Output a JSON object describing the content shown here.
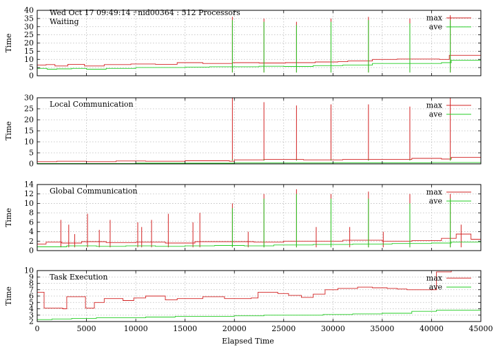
{
  "chart_data": {
    "type": "line",
    "title": "Wed Oct 17 09:49:14 : nid00364 : 512 Processors",
    "xlabel": "Elapsed Time",
    "xlim": [
      0,
      45000
    ],
    "xticks": [
      0,
      5000,
      10000,
      15000,
      20000,
      25000,
      30000,
      35000,
      40000,
      45000
    ],
    "colors": {
      "max": "#d22020",
      "ave": "#22cc22"
    },
    "legend_position": "top-right",
    "grid": true,
    "panels": [
      {
        "name": "Waiting",
        "ylabel": "Time",
        "ylim": [
          0,
          40
        ],
        "yticks": [
          0,
          5,
          10,
          15,
          20,
          25,
          30,
          35,
          40
        ],
        "series": [
          {
            "name": "max",
            "steps": [
              [
                0,
                6.5
              ],
              [
                900,
                6.8
              ],
              [
                1800,
                6
              ],
              [
                3100,
                7
              ],
              [
                4800,
                6
              ],
              [
                6800,
                6.8
              ],
              [
                9500,
                7.2
              ],
              [
                12000,
                7
              ],
              [
                14200,
                8
              ],
              [
                16800,
                7.5
              ],
              [
                19800,
                8
              ],
              [
                22500,
                7.8
              ],
              [
                25200,
                8
              ],
              [
                28200,
                8.4
              ],
              [
                30500,
                8.6
              ],
              [
                31500,
                9
              ],
              [
                34000,
                10
              ],
              [
                36500,
                10.2
              ],
              [
                40800,
                10
              ],
              [
                41800,
                12.5
              ],
              [
                45000,
                12.5
              ]
            ],
            "spikes": [
              [
                19800,
                36
              ],
              [
                23000,
                35
              ],
              [
                26300,
                33
              ],
              [
                29800,
                35
              ],
              [
                33600,
                36
              ],
              [
                37800,
                35
              ],
              [
                41900,
                37
              ]
            ]
          },
          {
            "name": "ave",
            "steps": [
              [
                0,
                4.5
              ],
              [
                1000,
                4
              ],
              [
                2000,
                4.2
              ],
              [
                3500,
                4.5
              ],
              [
                5000,
                4
              ],
              [
                7000,
                4.5
              ],
              [
                10000,
                5
              ],
              [
                12500,
                5
              ],
              [
                15000,
                5.3
              ],
              [
                17500,
                5.5
              ],
              [
                20000,
                5.5
              ],
              [
                22500,
                5.8
              ],
              [
                25000,
                5.7
              ],
              [
                28000,
                6.2
              ],
              [
                31000,
                6.5
              ],
              [
                34000,
                7.5
              ],
              [
                37000,
                7.5
              ],
              [
                41000,
                8
              ],
              [
                42000,
                9.5
              ],
              [
                45000,
                9.5
              ]
            ],
            "spikes": [
              [
                19800,
                34
              ],
              [
                23000,
                33
              ],
              [
                26300,
                31
              ],
              [
                29800,
                33
              ],
              [
                33600,
                34
              ],
              [
                37800,
                32
              ],
              [
                41900,
                34
              ]
            ]
          }
        ]
      },
      {
        "name": "Local Communication",
        "ylabel": "Time",
        "ylim": [
          0,
          30
        ],
        "yticks": [
          0,
          5,
          10,
          15,
          20,
          25,
          30
        ],
        "series": [
          {
            "name": "max",
            "steps": [
              [
                0,
                1
              ],
              [
                2000,
                1.2
              ],
              [
                5000,
                1
              ],
              [
                8000,
                1.3
              ],
              [
                11000,
                1.2
              ],
              [
                15000,
                1.4
              ],
              [
                19500,
                1.2
              ],
              [
                20000,
                1.8
              ],
              [
                23000,
                2
              ],
              [
                27000,
                1.8
              ],
              [
                31000,
                2
              ],
              [
                35000,
                2
              ],
              [
                38000,
                2.5
              ],
              [
                41000,
                2.2
              ],
              [
                42000,
                3
              ],
              [
                45000,
                3
              ]
            ],
            "spikes": [
              [
                19800,
                30
              ],
              [
                23000,
                28
              ],
              [
                26300,
                26.5
              ],
              [
                29800,
                27
              ],
              [
                33600,
                27
              ],
              [
                37800,
                26
              ],
              [
                41900,
                30
              ]
            ]
          },
          {
            "name": "ave",
            "steps": [
              [
                0,
                0.2
              ],
              [
                10000,
                0.3
              ],
              [
                20000,
                0.4
              ],
              [
                30000,
                0.5
              ],
              [
                40000,
                0.6
              ],
              [
                45000,
                0.6
              ]
            ],
            "spikes": [
              [
                19800,
                2
              ],
              [
                23000,
                2
              ],
              [
                26300,
                2
              ],
              [
                29800,
                2
              ],
              [
                33600,
                2
              ],
              [
                37800,
                2
              ],
              [
                41900,
                3
              ]
            ]
          }
        ]
      },
      {
        "name": "Global Communication",
        "ylabel": "Time",
        "ylim": [
          0,
          14
        ],
        "yticks": [
          0,
          2,
          4,
          6,
          8,
          10,
          12,
          14
        ],
        "series": [
          {
            "name": "max",
            "steps": [
              [
                0,
                1.4
              ],
              [
                900,
                1.8
              ],
              [
                2500,
                1.6
              ],
              [
                4500,
                1.9
              ],
              [
                7000,
                1.7
              ],
              [
                10000,
                1.8
              ],
              [
                13000,
                1.6
              ],
              [
                16000,
                1.9
              ],
              [
                19000,
                1.9
              ],
              [
                22000,
                1.8
              ],
              [
                25000,
                2
              ],
              [
                29000,
                2
              ],
              [
                31000,
                2.2
              ],
              [
                35000,
                2
              ],
              [
                38000,
                2.1
              ],
              [
                41000,
                2.6
              ],
              [
                42500,
                3.5
              ],
              [
                44000,
                2.4
              ],
              [
                45000,
                2.4
              ]
            ],
            "spikes": [
              [
                2400,
                6.5
              ],
              [
                3200,
                5.5
              ],
              [
                3800,
                3.5
              ],
              [
                5100,
                7.8
              ],
              [
                6300,
                4.4
              ],
              [
                7400,
                6.5
              ],
              [
                10200,
                6
              ],
              [
                10600,
                5
              ],
              [
                11600,
                6.5
              ],
              [
                13300,
                7.8
              ],
              [
                15800,
                6
              ],
              [
                16500,
                8
              ],
              [
                19800,
                10
              ],
              [
                21400,
                4
              ],
              [
                23000,
                12
              ],
              [
                26300,
                13
              ],
              [
                28300,
                5
              ],
              [
                29800,
                12
              ],
              [
                31700,
                5
              ],
              [
                33600,
                12.5
              ],
              [
                35100,
                4
              ],
              [
                37800,
                12
              ],
              [
                41900,
                12
              ],
              [
                43000,
                5.5
              ]
            ]
          },
          {
            "name": "ave",
            "steps": [
              [
                0,
                0.8
              ],
              [
                3000,
                1
              ],
              [
                6000,
                0.9
              ],
              [
                9000,
                1
              ],
              [
                12000,
                0.9
              ],
              [
                15000,
                1
              ],
              [
                18000,
                1.1
              ],
              [
                21000,
                1
              ],
              [
                24000,
                1.2
              ],
              [
                28000,
                1.3
              ],
              [
                32000,
                1.4
              ],
              [
                36000,
                1.5
              ],
              [
                40000,
                1.6
              ],
              [
                42000,
                1.8
              ],
              [
                45000,
                1.8
              ]
            ],
            "spikes": [
              [
                19800,
                9
              ],
              [
                23000,
                11
              ],
              [
                26300,
                12
              ],
              [
                29800,
                11
              ],
              [
                33600,
                11
              ],
              [
                37800,
                10
              ],
              [
                41900,
                11
              ]
            ]
          }
        ]
      },
      {
        "name": "Task Execution",
        "ylabel": "Time",
        "ylim": [
          2,
          10
        ],
        "yticks": [
          2,
          3,
          4,
          5,
          6,
          7,
          8,
          9,
          10
        ],
        "series": [
          {
            "name": "max",
            "steps": [
              [
                0,
                6.6
              ],
              [
                700,
                4.1
              ],
              [
                2600,
                4
              ],
              [
                3000,
                5.9
              ],
              [
                4900,
                4.1
              ],
              [
                5800,
                5
              ],
              [
                6800,
                5.6
              ],
              [
                8700,
                5.3
              ],
              [
                9800,
                5.7
              ],
              [
                11000,
                6
              ],
              [
                13000,
                5.4
              ],
              [
                14200,
                5.6
              ],
              [
                16800,
                5.9
              ],
              [
                19000,
                5.6
              ],
              [
                21700,
                5.7
              ],
              [
                22400,
                6.6
              ],
              [
                24400,
                6.4
              ],
              [
                25500,
                6.1
              ],
              [
                26800,
                5.8
              ],
              [
                28000,
                6.3
              ],
              [
                29200,
                7
              ],
              [
                30500,
                7.2
              ],
              [
                32500,
                7.4
              ],
              [
                34000,
                7.3
              ],
              [
                35500,
                7.2
              ],
              [
                36500,
                7.1
              ],
              [
                37500,
                7
              ],
              [
                40500,
                9.8
              ],
              [
                42000,
                10
              ],
              [
                45000,
                10
              ]
            ],
            "spikes": []
          },
          {
            "name": "ave",
            "steps": [
              [
                0,
                2.3
              ],
              [
                1500,
                2.4
              ],
              [
                3500,
                2.5
              ],
              [
                6000,
                2.6
              ],
              [
                8500,
                2.6
              ],
              [
                11000,
                2.7
              ],
              [
                14000,
                2.8
              ],
              [
                17000,
                2.8
              ],
              [
                20000,
                2.9
              ],
              [
                23000,
                3
              ],
              [
                26000,
                3
              ],
              [
                29000,
                3.1
              ],
              [
                32000,
                3.2
              ],
              [
                35000,
                3.3
              ],
              [
                38000,
                3.6
              ],
              [
                40500,
                3.8
              ],
              [
                45000,
                3.8
              ]
            ],
            "spikes": []
          }
        ]
      }
    ]
  }
}
